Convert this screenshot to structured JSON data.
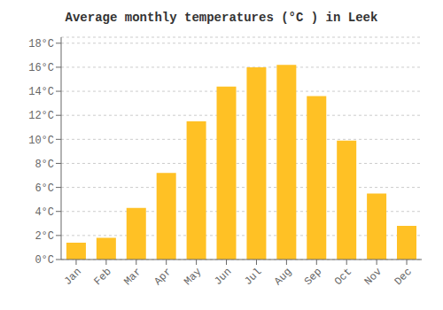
{
  "chart_data": {
    "type": "bar",
    "title": "Average monthly temperatures (°C ) in Leek",
    "categories": [
      "Jan",
      "Feb",
      "Mar",
      "Apr",
      "May",
      "Jun",
      "Jul",
      "Aug",
      "Sep",
      "Oct",
      "Nov",
      "Dec"
    ],
    "values": [
      1.4,
      1.8,
      4.3,
      7.2,
      11.5,
      14.4,
      16.0,
      16.2,
      13.6,
      9.9,
      5.5,
      2.8
    ],
    "color": "#FFC125",
    "ylim": [
      0,
      18.5
    ],
    "yticks": [
      {
        "value": 0,
        "label": "0°C"
      },
      {
        "value": 2,
        "label": "2°C"
      },
      {
        "value": 4,
        "label": "4°C"
      },
      {
        "value": 6,
        "label": "6°C"
      },
      {
        "value": 8,
        "label": "8°C"
      },
      {
        "value": 10,
        "label": "10°C"
      },
      {
        "value": 12,
        "label": "12°C"
      },
      {
        "value": 14,
        "label": "14°C"
      },
      {
        "value": 16,
        "label": "16°C"
      },
      {
        "value": 18,
        "label": "18°C"
      }
    ],
    "grid": true
  }
}
